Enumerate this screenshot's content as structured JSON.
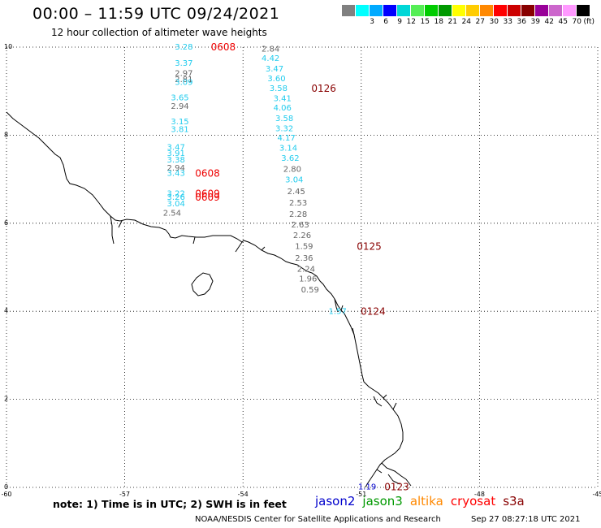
{
  "header": {
    "title": "00:00 – 11:59 UTC 09/24/2021",
    "subtitle": "12 hour collection of altimeter wave heights"
  },
  "color_scale": {
    "unit_label": "(ft)",
    "levels": [
      {
        "label": "",
        "color": "#808080"
      },
      {
        "label": "3",
        "color": "#00ffff"
      },
      {
        "label": "6",
        "color": "#00aaff"
      },
      {
        "label": "9",
        "color": "#0000ff"
      },
      {
        "label": "12",
        "color": "#00d7d7"
      },
      {
        "label": "15",
        "color": "#55ee55"
      },
      {
        "label": "18",
        "color": "#00cc00"
      },
      {
        "label": "21",
        "color": "#009900"
      },
      {
        "label": "24",
        "color": "#ffff00"
      },
      {
        "label": "27",
        "color": "#ffcc00"
      },
      {
        "label": "30",
        "color": "#ff8800"
      },
      {
        "label": "33",
        "color": "#ff0000"
      },
      {
        "label": "36",
        "color": "#cc0000"
      },
      {
        "label": "39",
        "color": "#880000"
      },
      {
        "label": "42",
        "color": "#990099"
      },
      {
        "label": "45",
        "color": "#cc66cc"
      },
      {
        "label": "70",
        "color": "#ff99ff"
      },
      {
        "label": "",
        "color": "#000000"
      }
    ]
  },
  "map": {
    "lon_range": [
      -60,
      -45
    ],
    "lat_range": [
      0,
      10
    ],
    "lon_ticks": [
      "-60",
      "-57",
      "-54",
      "-51",
      "-48",
      "-45"
    ],
    "lat_ticks": [
      "0",
      "2",
      "4",
      "6",
      "8",
      "10"
    ],
    "colors": {
      "cyan": "#22ccee",
      "gray": "#666666",
      "red": "#ee0000",
      "darkred": "#880000",
      "blue": "#0000cc"
    },
    "observations": [
      {
        "text": "3.28",
        "lon": -55.5,
        "lat": 10.0,
        "color": "cyan"
      },
      {
        "text": "3.37",
        "lon": -55.5,
        "lat": 9.63,
        "color": "cyan"
      },
      {
        "text": "2.97",
        "lon": -55.5,
        "lat": 9.4,
        "color": "gray"
      },
      {
        "text": "2.81",
        "lon": -55.5,
        "lat": 9.26,
        "color": "gray"
      },
      {
        "text": "3.09",
        "lon": -55.5,
        "lat": 9.2,
        "color": "cyan"
      },
      {
        "text": "3.65",
        "lon": -55.6,
        "lat": 8.85,
        "color": "cyan"
      },
      {
        "text": "2.94",
        "lon": -55.6,
        "lat": 8.65,
        "color": "gray"
      },
      {
        "text": "3.15",
        "lon": -55.6,
        "lat": 8.3,
        "color": "cyan"
      },
      {
        "text": "3.81",
        "lon": -55.6,
        "lat": 8.13,
        "color": "cyan"
      },
      {
        "text": "3.47",
        "lon": -55.7,
        "lat": 7.72,
        "color": "cyan"
      },
      {
        "text": "3.91",
        "lon": -55.7,
        "lat": 7.58,
        "color": "cyan"
      },
      {
        "text": "3.38",
        "lon": -55.7,
        "lat": 7.44,
        "color": "cyan"
      },
      {
        "text": "2.94",
        "lon": -55.7,
        "lat": 7.25,
        "color": "gray"
      },
      {
        "text": "3.43",
        "lon": -55.7,
        "lat": 7.13,
        "color": "cyan"
      },
      {
        "text": "3.22",
        "lon": -55.7,
        "lat": 6.67,
        "color": "cyan"
      },
      {
        "text": "3.26",
        "lon": -55.7,
        "lat": 6.59,
        "color": "cyan"
      },
      {
        "text": "3.04",
        "lon": -55.7,
        "lat": 6.44,
        "color": "cyan"
      },
      {
        "text": "2.54",
        "lon": -55.8,
        "lat": 6.23,
        "color": "gray"
      },
      {
        "text": "2.84",
        "lon": -53.3,
        "lat": 9.95,
        "color": "gray"
      },
      {
        "text": "4.42",
        "lon": -53.3,
        "lat": 9.74,
        "color": "cyan"
      },
      {
        "text": "3.47",
        "lon": -53.2,
        "lat": 9.5,
        "color": "cyan"
      },
      {
        "text": "3.60",
        "lon": -53.15,
        "lat": 9.28,
        "color": "cyan"
      },
      {
        "text": "3.58",
        "lon": -53.1,
        "lat": 9.06,
        "color": "cyan"
      },
      {
        "text": "3.41",
        "lon": -53.0,
        "lat": 8.83,
        "color": "cyan"
      },
      {
        "text": "4.06",
        "lon": -53.0,
        "lat": 8.62,
        "color": "cyan"
      },
      {
        "text": "3.58",
        "lon": -52.95,
        "lat": 8.38,
        "color": "cyan"
      },
      {
        "text": "3.32",
        "lon": -52.95,
        "lat": 8.15,
        "color": "cyan"
      },
      {
        "text": "4.17",
        "lon": -52.9,
        "lat": 7.93,
        "color": "cyan"
      },
      {
        "text": "3.14",
        "lon": -52.85,
        "lat": 7.7,
        "color": "cyan"
      },
      {
        "text": "3.62",
        "lon": -52.8,
        "lat": 7.47,
        "color": "cyan"
      },
      {
        "text": "2.80",
        "lon": -52.75,
        "lat": 7.22,
        "color": "gray"
      },
      {
        "text": "3.04",
        "lon": -52.7,
        "lat": 6.98,
        "color": "cyan"
      },
      {
        "text": "2.45",
        "lon": -52.65,
        "lat": 6.72,
        "color": "gray"
      },
      {
        "text": "2.53",
        "lon": -52.6,
        "lat": 6.46,
        "color": "gray"
      },
      {
        "text": "2.28",
        "lon": -52.6,
        "lat": 6.2,
        "color": "gray"
      },
      {
        "text": "2.63",
        "lon": -52.55,
        "lat": 5.96,
        "color": "gray"
      },
      {
        "text": "2.26",
        "lon": -52.5,
        "lat": 5.72,
        "color": "gray"
      },
      {
        "text": "1.59",
        "lon": -52.45,
        "lat": 5.47,
        "color": "gray"
      },
      {
        "text": "2.36",
        "lon": -52.45,
        "lat": 5.2,
        "color": "gray"
      },
      {
        "text": "2.24",
        "lon": -52.4,
        "lat": 4.95,
        "color": "gray"
      },
      {
        "text": "1.96",
        "lon": -52.35,
        "lat": 4.73,
        "color": "gray"
      },
      {
        "text": "0.59",
        "lon": -52.3,
        "lat": 4.48,
        "color": "gray"
      },
      {
        "text": "1.57",
        "lon": -51.6,
        "lat": 3.99,
        "color": "cyan"
      },
      {
        "text": "1.19",
        "lon": -50.85,
        "lat": 0.01,
        "color": "blue"
      }
    ],
    "passes": [
      {
        "text": "0608",
        "lon": -54.5,
        "lat": 10.0,
        "color": "red"
      },
      {
        "text": "0126",
        "lon": -51.95,
        "lat": 9.06,
        "color": "darkred"
      },
      {
        "text": "0608",
        "lon": -54.9,
        "lat": 7.13,
        "color": "red"
      },
      {
        "text": "0609",
        "lon": -54.9,
        "lat": 6.67,
        "color": "red"
      },
      {
        "text": "0609",
        "lon": -54.9,
        "lat": 6.59,
        "color": "red"
      },
      {
        "text": "0125",
        "lon": -50.8,
        "lat": 5.47,
        "color": "darkred"
      },
      {
        "text": "0124",
        "lon": -50.7,
        "lat": 3.99,
        "color": "darkred"
      },
      {
        "text": "0123",
        "lon": -50.1,
        "lat": 0.01,
        "color": "darkred"
      }
    ]
  },
  "footer": {
    "note": "note:  1) Time is in UTC;  2) SWH is in feet",
    "legend": [
      {
        "label": "jason2",
        "color": "#0000cc"
      },
      {
        "label": "jason3",
        "color": "#009900"
      },
      {
        "label": "altika",
        "color": "#ff8800"
      },
      {
        "label": "cryosat",
        "color": "#ff0000"
      },
      {
        "label": "s3a",
        "color": "#880000"
      }
    ],
    "credit": "NOAA/NESDIS Center for Satellite Applications and Research",
    "timestamp": "Sep 27 08:27:18 UTC 2021"
  }
}
